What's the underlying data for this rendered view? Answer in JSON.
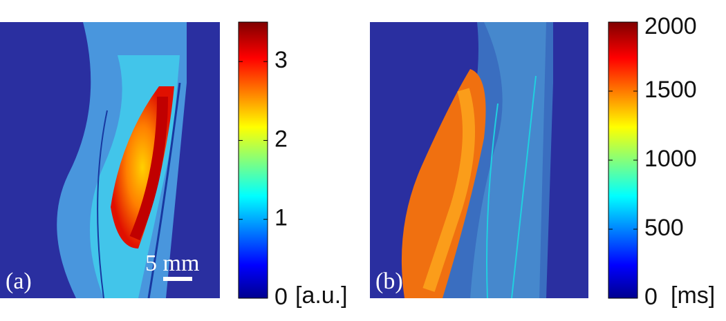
{
  "panels": [
    {
      "label": "(a)",
      "scale_bar": "5 mm",
      "colorbar": {
        "lim": [
          0,
          3.5
        ],
        "ticks": [
          0,
          1,
          2,
          3
        ],
        "unit": "[a.u.]"
      }
    },
    {
      "label": "(b)",
      "colorbar": {
        "lim": [
          0,
          2000
        ],
        "ticks": [
          0,
          500,
          1000,
          1500,
          2000
        ],
        "unit": "[ms]"
      }
    }
  ]
}
